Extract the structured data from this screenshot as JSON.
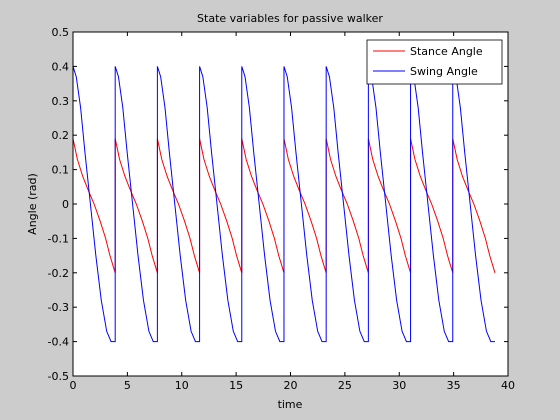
{
  "colors": {
    "figure_bg": "#cccccc",
    "axes_bg": "#ffffff",
    "stance": "#ff0000",
    "swing": "#0000ff"
  },
  "chart_data": {
    "type": "line",
    "title": "State variables for passive walker",
    "xlabel": "time",
    "ylabel": "Angle (rad)",
    "xlim": [
      0,
      40
    ],
    "ylim": [
      -0.5,
      0.5
    ],
    "xticks": [
      0,
      5,
      10,
      15,
      20,
      25,
      30,
      35,
      40
    ],
    "yticks": [
      -0.5,
      -0.4,
      -0.3,
      -0.2,
      -0.1,
      0,
      0.1,
      0.2,
      0.3,
      0.4,
      0.5
    ],
    "ytick_labels": [
      "-0.5",
      "-0.4",
      "-0.3",
      "-0.2",
      "-0.1",
      "0",
      "0.1",
      "0.2",
      "0.3",
      "0.4",
      "0.5"
    ],
    "grid": false,
    "legend_position": "top-right",
    "step_period": 3.88,
    "num_steps": 10,
    "series": [
      {
        "name": "Stance Angle",
        "color": "#ff0000",
        "step_start_value": 0.19,
        "step_end_value": -0.2,
        "note_at_impacts": "jumps from -0.2 back to +0.19 at each step boundary",
        "x": [
          0,
          0.4,
          0.9,
          1.4,
          1.94,
          2.5,
          3.0,
          3.4,
          3.88
        ],
        "y": [
          0.19,
          0.13,
          0.08,
          0.04,
          0.0,
          -0.05,
          -0.1,
          -0.15,
          -0.2
        ]
      },
      {
        "name": "Swing Angle",
        "color": "#0000ff",
        "step_start_value": 0.4,
        "step_end_value": -0.4,
        "note_at_impacts": "jumps from -0.4 back to +0.4 at each step boundary",
        "x": [
          0,
          0.3,
          0.7,
          1.1,
          1.6,
          2.1,
          2.6,
          3.1,
          3.5,
          3.88
        ],
        "y": [
          0.4,
          0.37,
          0.28,
          0.15,
          0.0,
          -0.15,
          -0.28,
          -0.37,
          -0.4,
          -0.4
        ]
      }
    ]
  }
}
